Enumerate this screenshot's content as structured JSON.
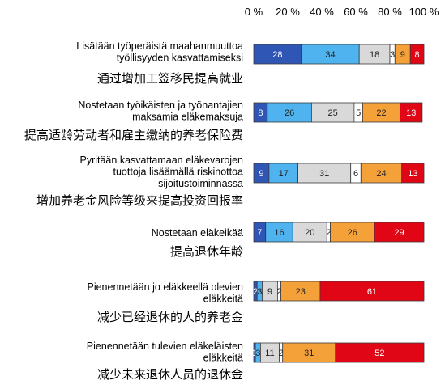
{
  "chart_data": {
    "type": "bar",
    "orientation": "horizontal",
    "stacked": true,
    "x_tick_labels": [
      "0 %",
      "20 %",
      "40 %",
      "60 %",
      "80 %",
      "100 %"
    ],
    "xlim": [
      0,
      100
    ],
    "grid": false,
    "legend": "none",
    "series_colors": [
      "#2f55b5",
      "#4fb3ef",
      "#d9d9d9",
      "#ffffff",
      "#f5a13a",
      "#e10615"
    ],
    "categories": [
      {
        "fi": [
          "Lisätään työperäistä maahanmuuttoa",
          "työllisyyden kasvattamiseksi"
        ],
        "zh": "通过增加工签移民提高就业"
      },
      {
        "fi": [
          "Nostetaan työikäisten ja työnantajien",
          "maksamia eläkemaksuja"
        ],
        "zh": "提高适龄劳动者和雇主缴纳的养老保险费"
      },
      {
        "fi": [
          "Pyritään kasvattamaan eläkevarojen",
          "tuottoja lisäämällä riskinottoa",
          "sijoitustoiminnassa"
        ],
        "zh": "增加养老金风险等级来提高投资回报率"
      },
      {
        "fi": [
          "Nostetaan eläkeikää"
        ],
        "zh": "提高退休年龄"
      },
      {
        "fi": [
          "Pienennetään jo eläkkeellä olevien",
          "eläkkeitä"
        ],
        "zh": "减少已经退休的人的养老金"
      },
      {
        "fi": [
          "Pienennetään tulevien eläkeläisten",
          "eläkkeitä"
        ],
        "zh": "减少未来退休人员的退休金"
      }
    ],
    "rows": [
      [
        28,
        34,
        18,
        3,
        9,
        8
      ],
      [
        8,
        26,
        25,
        5,
        22,
        13
      ],
      [
        9,
        17,
        31,
        6,
        24,
        13
      ],
      [
        7,
        16,
        20,
        2,
        26,
        29
      ],
      [
        2,
        3,
        9,
        2,
        23,
        61
      ],
      [
        1,
        3,
        11,
        2,
        31,
        52
      ]
    ],
    "segment_labels": [
      [
        "28",
        "34",
        "18",
        "3",
        "9",
        "8"
      ],
      [
        "8",
        "26",
        "25",
        "5",
        "22",
        "13"
      ],
      [
        "9",
        "17",
        "31",
        "6",
        "24",
        "13"
      ],
      [
        "7",
        "16",
        "20",
        "2",
        "26",
        "29"
      ],
      [
        "2",
        "3",
        "9",
        "2",
        "23",
        "61"
      ],
      [
        "1",
        "3",
        "11",
        "2",
        "31",
        "52"
      ]
    ]
  }
}
